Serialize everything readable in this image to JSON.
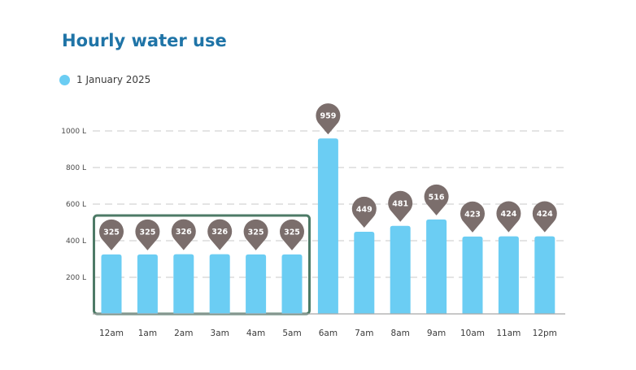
{
  "colors": {
    "title": "#1f74a7",
    "bar": "#6bcdf3",
    "pin": "#7b6e6c",
    "highlight_box": "#4d7a66",
    "grid": "#c8c8c8"
  },
  "chart_data": {
    "type": "bar",
    "title": "Hourly water use",
    "legend": [
      {
        "name": "1 January 2025",
        "color": "#6bcdf3"
      }
    ],
    "categories": [
      "12am",
      "1am",
      "2am",
      "3am",
      "4am",
      "5am",
      "6am",
      "7am",
      "8am",
      "9am",
      "10am",
      "11am",
      "12pm"
    ],
    "series": [
      {
        "name": "1 January 2025",
        "values": [
          325,
          325,
          326,
          326,
          325,
          325,
          959,
          449,
          481,
          516,
          423,
          424,
          424
        ]
      }
    ],
    "value_labels": [
      "325",
      "325",
      "326",
      "326",
      "325",
      "325",
      "959",
      "449",
      "481",
      "516",
      "423",
      "424",
      "424"
    ],
    "y_ticks": [
      {
        "value": 200,
        "label": "200 L"
      },
      {
        "value": 400,
        "label": "400 L"
      },
      {
        "value": 600,
        "label": "600 L"
      },
      {
        "value": 800,
        "label": "800 L"
      },
      {
        "value": 1000,
        "label": "1000 L"
      }
    ],
    "ylim": [
      0,
      1000
    ],
    "grid": true,
    "highlight_categories": [
      "12am",
      "1am",
      "2am",
      "3am",
      "4am",
      "5am"
    ]
  }
}
